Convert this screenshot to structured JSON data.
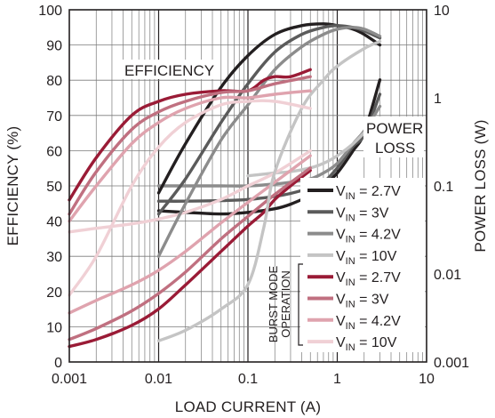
{
  "chart_data": {
    "type": "line",
    "x_scale": "log",
    "xlabel": "LOAD CURRENT (A)",
    "ylabel_left": "EFFICIENCY (%)",
    "ylabel_right": "POWER LOSS (W)",
    "xlim": [
      0.001,
      10
    ],
    "ylim_left": [
      0,
      100
    ],
    "ylim_right": [
      0.001,
      10
    ],
    "y_right_scale": "log",
    "x_ticks": [
      "0.001",
      "0.01",
      "0.1",
      "1",
      "10"
    ],
    "y_left_ticks": [
      "0",
      "10",
      "20",
      "30",
      "40",
      "50",
      "60",
      "70",
      "80",
      "90",
      "100"
    ],
    "y_right_ticks": [
      "0.001",
      "0.01",
      "0.1",
      "1",
      "10"
    ],
    "grid": true,
    "legend_position": "right",
    "annotations": {
      "efficiency": "EFFICIENCY",
      "power_loss_line1": "POWER",
      "power_loss_line2": "LOSS",
      "burst_line1": "BURST MODE",
      "burst_line2": "OPERATION"
    },
    "legend": [
      {
        "prefix": "V",
        "sub": "IN",
        "suffix": " = 2.7V",
        "color": "#231f20"
      },
      {
        "prefix": "V",
        "sub": "IN",
        "suffix": " = 3V",
        "color": "#5b5b5b"
      },
      {
        "prefix": "V",
        "sub": "IN",
        "suffix": " = 4.2V",
        "color": "#8c8c8c"
      },
      {
        "prefix": "V",
        "sub": "IN",
        "suffix": " = 10V",
        "color": "#c4c4c4"
      },
      {
        "prefix": "V",
        "sub": "IN",
        "suffix": " = 2.7V",
        "color": "#9a1b36"
      },
      {
        "prefix": "V",
        "sub": "IN",
        "suffix": " = 3V",
        "color": "#c07080"
      },
      {
        "prefix": "V",
        "sub": "IN",
        "suffix": " = 4.2V",
        "color": "#dfa3ae"
      },
      {
        "prefix": "V",
        "sub": "IN",
        "suffix": " = 10V",
        "color": "#f0d0d5"
      }
    ],
    "series": [
      {
        "group": "pwm_efficiency",
        "color": "#231f20",
        "axis": "left",
        "x": [
          0.01,
          0.02,
          0.05,
          0.1,
          0.2,
          0.4,
          0.7,
          1,
          1.5,
          2,
          3
        ],
        "y": [
          48,
          62,
          78,
          87,
          93,
          95.5,
          96,
          95.5,
          94.5,
          93,
          90
        ]
      },
      {
        "group": "pwm_efficiency",
        "color": "#5b5b5b",
        "axis": "left",
        "x": [
          0.01,
          0.02,
          0.05,
          0.1,
          0.2,
          0.4,
          0.7,
          1,
          1.5,
          2,
          3
        ],
        "y": [
          42,
          52,
          68,
          79,
          88,
          93,
          95,
          95.5,
          95,
          94,
          92
        ]
      },
      {
        "group": "pwm_efficiency",
        "color": "#8c8c8c",
        "axis": "left",
        "x": [
          0.01,
          0.02,
          0.05,
          0.1,
          0.2,
          0.4,
          0.7,
          1,
          1.5,
          2,
          3
        ],
        "y": [
          30,
          45,
          63,
          73,
          83,
          89.5,
          93,
          94.5,
          95,
          94.5,
          92.5
        ]
      },
      {
        "group": "pwm_efficiency",
        "color": "#c4c4c4",
        "axis": "left",
        "x": [
          0.01,
          0.02,
          0.05,
          0.1,
          0.15,
          0.2,
          0.4,
          0.7,
          1,
          2,
          3
        ],
        "y": [
          6,
          9,
          15,
          22,
          38,
          54,
          72,
          80,
          84,
          89,
          91
        ]
      },
      {
        "group": "burst_efficiency",
        "color": "#9a1b36",
        "axis": "left",
        "x": [
          0.001,
          0.002,
          0.005,
          0.01,
          0.02,
          0.05,
          0.1,
          0.15,
          0.2,
          0.3,
          0.5
        ],
        "y": [
          46,
          58,
          70,
          74,
          76,
          77,
          77,
          80,
          81,
          81,
          83
        ]
      },
      {
        "group": "burst_efficiency",
        "color": "#c07080",
        "axis": "left",
        "x": [
          0.001,
          0.002,
          0.005,
          0.01,
          0.02,
          0.05,
          0.1,
          0.2,
          0.5
        ],
        "y": [
          42,
          54,
          66,
          71,
          74,
          76.5,
          77,
          79,
          81
        ]
      },
      {
        "group": "burst_efficiency",
        "color": "#dfa3ae",
        "axis": "left",
        "x": [
          0.001,
          0.002,
          0.005,
          0.01,
          0.02,
          0.05,
          0.1,
          0.2,
          0.5
        ],
        "y": [
          40,
          50,
          62,
          68,
          72,
          75,
          75,
          76,
          77
        ]
      },
      {
        "group": "burst_efficiency",
        "color": "#f0d0d5",
        "axis": "left",
        "x": [
          0.001,
          0.002,
          0.005,
          0.01,
          0.02,
          0.05,
          0.1,
          0.2,
          0.5
        ],
        "y": [
          19,
          30,
          50,
          61,
          68,
          73,
          74,
          74,
          72
        ]
      },
      {
        "group": "pwm_power_loss",
        "color": "#231f20",
        "axis": "right",
        "x": [
          0.01,
          0.02,
          0.05,
          0.1,
          0.2,
          0.3,
          0.5,
          0.7,
          1,
          1.5,
          2,
          3
        ],
        "y": [
          0.052,
          0.05,
          0.048,
          0.05,
          0.055,
          0.062,
          0.078,
          0.1,
          0.14,
          0.25,
          0.4,
          1.6
        ]
      },
      {
        "group": "pwm_power_loss",
        "color": "#5b5b5b",
        "axis": "right",
        "x": [
          0.01,
          0.02,
          0.05,
          0.1,
          0.2,
          0.3,
          0.5,
          0.7,
          1,
          1.5,
          2,
          3
        ],
        "y": [
          0.067,
          0.067,
          0.068,
          0.07,
          0.076,
          0.082,
          0.095,
          0.11,
          0.16,
          0.28,
          0.38,
          1.1
        ]
      },
      {
        "group": "pwm_power_loss",
        "color": "#8c8c8c",
        "axis": "right",
        "x": [
          0.01,
          0.02,
          0.05,
          0.1,
          0.2,
          0.3,
          0.5,
          0.7,
          1,
          1.5,
          2,
          3
        ],
        "y": [
          0.1,
          0.1,
          0.1,
          0.1,
          0.105,
          0.11,
          0.12,
          0.14,
          0.18,
          0.3,
          0.42,
          0.8
        ]
      },
      {
        "group": "pwm_power_loss",
        "color": "#c4c4c4",
        "axis": "right",
        "x": [
          0.1,
          0.2,
          0.3,
          0.5,
          0.7,
          1,
          1.5,
          2,
          3
        ],
        "y": [
          0.13,
          0.14,
          0.145,
          0.16,
          0.18,
          0.22,
          0.3,
          0.4,
          0.6
        ]
      },
      {
        "group": "burst_power_loss",
        "color": "#9a1b36",
        "axis": "right",
        "x": [
          0.001,
          0.002,
          0.005,
          0.01,
          0.02,
          0.05,
          0.1,
          0.15,
          0.2,
          0.3,
          0.5
        ],
        "y": [
          0.0015,
          0.0018,
          0.0026,
          0.004,
          0.0075,
          0.018,
          0.035,
          0.05,
          0.07,
          0.1,
          0.15
        ]
      },
      {
        "group": "burst_power_loss",
        "color": "#c07080",
        "axis": "right",
        "x": [
          0.001,
          0.002,
          0.005,
          0.01,
          0.02,
          0.05,
          0.1,
          0.2,
          0.5
        ],
        "y": [
          0.0018,
          0.0024,
          0.0038,
          0.006,
          0.0105,
          0.025,
          0.045,
          0.08,
          0.16
        ]
      },
      {
        "group": "burst_power_loss",
        "color": "#dfa3ae",
        "axis": "right",
        "x": [
          0.001,
          0.002,
          0.005,
          0.01,
          0.02,
          0.05,
          0.1,
          0.2,
          0.5
        ],
        "y": [
          0.0036,
          0.005,
          0.0075,
          0.011,
          0.018,
          0.038,
          0.065,
          0.11,
          0.22
        ]
      },
      {
        "group": "burst_power_loss",
        "color": "#f0d0d5",
        "axis": "right",
        "x": [
          0.001,
          0.002,
          0.005,
          0.01,
          0.02,
          0.05,
          0.1,
          0.2,
          0.5
        ],
        "y": [
          0.03,
          0.033,
          0.037,
          0.042,
          0.05,
          0.07,
          0.1,
          0.14,
          0.25
        ]
      }
    ]
  }
}
